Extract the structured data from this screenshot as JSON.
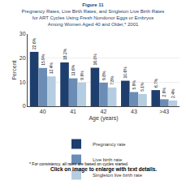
{
  "chart_data": {
    "type": "bar",
    "title": "Figure 11",
    "subtitle": [
      "Pregnancy Rates, Live Birth Rates, and Singleton Live Birth Rates",
      "for ART Cycles Using Fresh Nondonor Eggs or Embryos",
      "Among Women Aged 40 and Older,* 2001"
    ],
    "x_label": "Age (years)",
    "y_label": "Percent",
    "categories": [
      "40",
      "41",
      "42",
      "43",
      ">43"
    ],
    "series": [
      {
        "name": "Pregnancy rate",
        "color": "#1e3f6e",
        "values": [
          22.6,
          18.2,
          16.0,
          10.6,
          6.7
        ],
        "value_labels": [
          "22.6%",
          "18.2%",
          "16.0%",
          "10.6%",
          "6.7%"
        ]
      },
      {
        "name": "Live birth rate",
        "color": "#6b8db5",
        "values": [
          15.9,
          11.6,
          9.8,
          5.9,
          2.9
        ],
        "value_labels": [
          "15.9%",
          "11.6%",
          "9.8%",
          "5.9%",
          "2.9%"
        ]
      },
      {
        "name": "Singleton live birth rate",
        "color": "#b5cde0",
        "values": [
          12.4,
          9.9,
          7.8,
          5.1,
          2.4
        ],
        "value_labels": [
          "12.4%",
          "9.9%",
          "7.8%",
          "5.1%",
          "2.4%"
        ]
      }
    ],
    "ylim": [
      0,
      30
    ],
    "yticks": [
      0,
      10,
      20,
      30
    ],
    "grid": true,
    "legend": "bottom",
    "data_labels": true,
    "annotations": [
      "* For consistency, all rates are based on cycles started.",
      "Click on image to enlarge with text details."
    ]
  }
}
